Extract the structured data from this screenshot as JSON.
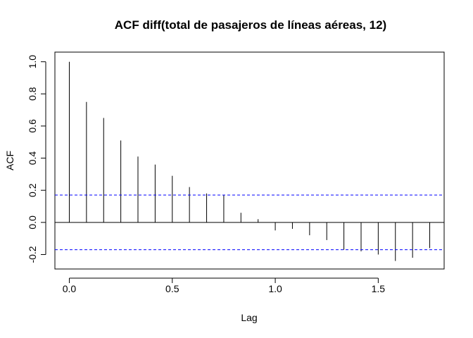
{
  "chart_data": {
    "type": "bar",
    "title": "ACF diff(total de pasajeros de líneas aéreas, 12)",
    "xlabel": "Lag",
    "ylabel": "ACF",
    "xlim": [
      -0.07,
      1.82
    ],
    "ylim": [
      -0.29,
      1.06
    ],
    "x_ticks": [
      0.0,
      0.5,
      1.0,
      1.5
    ],
    "x_tick_labels": [
      "0.0",
      "0.5",
      "1.0",
      "1.5"
    ],
    "y_ticks": [
      -0.2,
      0.0,
      0.2,
      0.4,
      0.6,
      0.8,
      1.0
    ],
    "y_tick_labels": [
      "-0.2",
      "0.0",
      "0.2",
      "0.4",
      "0.6",
      "0.8",
      "1.0"
    ],
    "x": [
      0.0,
      0.0833,
      0.1667,
      0.25,
      0.3333,
      0.4167,
      0.5,
      0.5833,
      0.6667,
      0.75,
      0.8333,
      0.9167,
      1.0,
      1.0833,
      1.1667,
      1.25,
      1.3333,
      1.4167,
      1.5,
      1.5833,
      1.6667,
      1.75
    ],
    "values": [
      1.0,
      0.75,
      0.65,
      0.51,
      0.41,
      0.36,
      0.29,
      0.22,
      0.18,
      0.17,
      0.06,
      0.02,
      -0.05,
      -0.04,
      -0.08,
      -0.11,
      -0.17,
      -0.18,
      -0.2,
      -0.24,
      -0.22,
      -0.16
    ],
    "confidence_bounds": [
      0.17,
      -0.17
    ],
    "confidence_line_color": "#0000ff",
    "zero_line": true,
    "grid": false
  }
}
